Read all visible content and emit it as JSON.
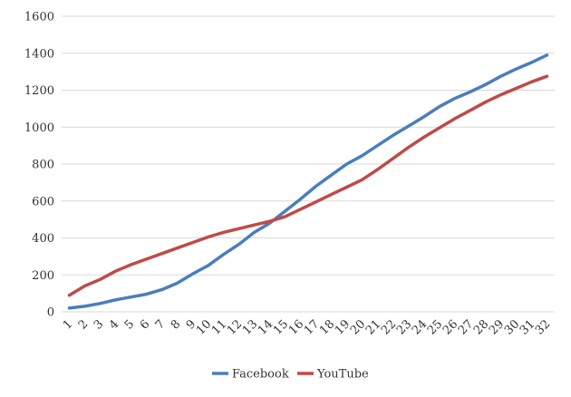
{
  "chart_data": {
    "type": "line",
    "title": "",
    "xlabel": "",
    "ylabel": "",
    "x": [
      "1",
      "2",
      "3",
      "4",
      "5",
      "6",
      "7",
      "8",
      "9",
      "10",
      "11",
      "12",
      "13",
      "14",
      "15",
      "16",
      "17",
      "18",
      "19",
      "20",
      "21",
      "22",
      "23",
      "24",
      "25",
      "26",
      "27",
      "28",
      "29",
      "30",
      "31",
      "32"
    ],
    "ylim": [
      0,
      1600
    ],
    "yticks": [
      "0",
      "200",
      "400",
      "600",
      "800",
      "1000",
      "1200",
      "1400",
      "1600"
    ],
    "grid": true,
    "legend_position": "bottom",
    "series": [
      {
        "name": "Facebook",
        "color": "#4a7ebb",
        "values": [
          20,
          30,
          45,
          65,
          80,
          95,
          120,
          155,
          205,
          250,
          310,
          365,
          430,
          480,
          545,
          610,
          680,
          740,
          800,
          845,
          900,
          955,
          1005,
          1055,
          1110,
          1155,
          1190,
          1230,
          1275,
          1315,
          1350,
          1390
        ]
      },
      {
        "name": "YouTube",
        "color": "#be4b48",
        "values": [
          90,
          140,
          175,
          220,
          255,
          285,
          315,
          345,
          375,
          405,
          430,
          450,
          470,
          490,
          515,
          555,
          595,
          635,
          675,
          715,
          770,
          830,
          890,
          945,
          995,
          1045,
          1090,
          1135,
          1175,
          1210,
          1245,
          1275
        ]
      }
    ]
  }
}
